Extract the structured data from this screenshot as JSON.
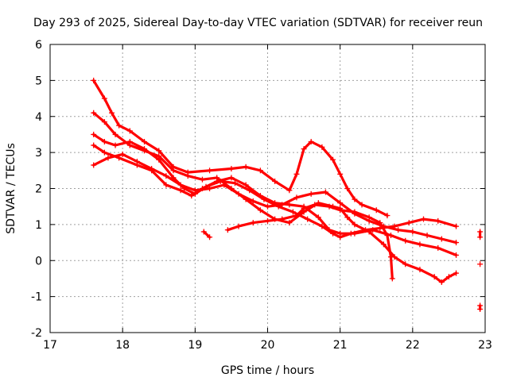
{
  "chart_data": {
    "type": "scatter",
    "title": "Day 293 of 2025, Sidereal Day-to-day VTEC variation (SDTVAR) for receiver reun",
    "xlabel": "GPS time / hours",
    "ylabel": "SDTVAR / TECUs",
    "xlim": [
      17,
      23
    ],
    "ylim": [
      -2,
      6
    ],
    "xticks": [
      "17",
      "18",
      "19",
      "20",
      "21",
      "22",
      "23"
    ],
    "yticks": [
      "-2",
      "-1",
      "0",
      "1",
      "2",
      "3",
      "4",
      "5",
      "6"
    ],
    "grid": true,
    "marker": "plus",
    "color": "#ff0000",
    "series": [
      {
        "name": "track-1",
        "points": [
          [
            17.6,
            5.0
          ],
          [
            17.75,
            4.5
          ],
          [
            17.85,
            4.1
          ],
          [
            17.95,
            3.75
          ],
          [
            18.1,
            3.6
          ],
          [
            18.3,
            3.3
          ],
          [
            18.5,
            3.05
          ],
          [
            18.7,
            2.6
          ],
          [
            18.9,
            2.45
          ],
          [
            19.2,
            2.5
          ],
          [
            19.5,
            2.55
          ],
          [
            19.7,
            2.6
          ],
          [
            19.9,
            2.5
          ],
          [
            20.1,
            2.2
          ],
          [
            20.3,
            1.95
          ],
          [
            20.4,
            2.4
          ],
          [
            20.5,
            3.1
          ],
          [
            20.6,
            3.3
          ],
          [
            20.75,
            3.15
          ],
          [
            20.9,
            2.8
          ],
          [
            21.0,
            2.4
          ],
          [
            21.1,
            2.0
          ],
          [
            21.2,
            1.7
          ],
          [
            21.3,
            1.55
          ],
          [
            21.5,
            1.4
          ],
          [
            21.65,
            1.25
          ]
        ]
      },
      {
        "name": "track-2",
        "points": [
          [
            17.6,
            4.1
          ],
          [
            17.75,
            3.85
          ],
          [
            17.9,
            3.5
          ],
          [
            18.1,
            3.2
          ],
          [
            18.3,
            3.05
          ],
          [
            18.5,
            2.9
          ],
          [
            18.7,
            2.5
          ],
          [
            18.9,
            2.35
          ],
          [
            19.1,
            2.25
          ],
          [
            19.3,
            2.3
          ],
          [
            19.5,
            2.0
          ],
          [
            19.7,
            1.7
          ],
          [
            19.9,
            1.4
          ],
          [
            20.1,
            1.15
          ],
          [
            20.3,
            1.05
          ],
          [
            20.5,
            1.35
          ],
          [
            20.7,
            1.6
          ],
          [
            20.9,
            1.5
          ],
          [
            21.0,
            1.45
          ],
          [
            21.1,
            1.2
          ],
          [
            21.2,
            1.0
          ],
          [
            21.4,
            0.8
          ],
          [
            21.6,
            0.45
          ],
          [
            21.75,
            0.1
          ],
          [
            21.9,
            -0.1
          ],
          [
            22.1,
            -0.25
          ],
          [
            22.3,
            -0.45
          ],
          [
            22.4,
            -0.6
          ],
          [
            22.5,
            -0.45
          ],
          [
            22.6,
            -0.35
          ]
        ]
      },
      {
        "name": "track-3",
        "points": [
          [
            17.6,
            3.5
          ],
          [
            17.75,
            3.3
          ],
          [
            17.9,
            3.2
          ],
          [
            18.1,
            3.3
          ],
          [
            18.3,
            3.1
          ],
          [
            18.5,
            2.8
          ],
          [
            18.7,
            2.3
          ],
          [
            18.85,
            2.0
          ],
          [
            19.0,
            1.85
          ],
          [
            19.15,
            2.05
          ],
          [
            19.35,
            2.2
          ],
          [
            19.55,
            2.15
          ],
          [
            19.75,
            1.95
          ],
          [
            19.95,
            1.7
          ],
          [
            20.15,
            1.5
          ],
          [
            20.35,
            1.35
          ],
          [
            20.55,
            1.15
          ],
          [
            20.75,
            0.95
          ],
          [
            20.9,
            0.75
          ],
          [
            21.0,
            0.65
          ],
          [
            21.15,
            0.75
          ],
          [
            21.35,
            0.85
          ],
          [
            21.55,
            0.9
          ],
          [
            21.75,
            0.95
          ],
          [
            21.95,
            1.05
          ],
          [
            22.15,
            1.15
          ],
          [
            22.35,
            1.1
          ],
          [
            22.6,
            0.95
          ]
        ]
      },
      {
        "name": "track-4",
        "points": [
          [
            17.6,
            3.2
          ],
          [
            17.75,
            3.0
          ],
          [
            17.95,
            2.85
          ],
          [
            18.2,
            2.65
          ],
          [
            18.4,
            2.5
          ],
          [
            18.6,
            2.1
          ],
          [
            18.8,
            1.95
          ],
          [
            18.95,
            1.8
          ],
          [
            19.1,
            2.0
          ],
          [
            19.3,
            2.2
          ],
          [
            19.5,
            2.3
          ],
          [
            19.7,
            2.1
          ],
          [
            19.9,
            1.8
          ],
          [
            20.1,
            1.6
          ],
          [
            20.3,
            1.55
          ],
          [
            20.5,
            1.5
          ],
          [
            20.7,
            1.2
          ],
          [
            20.85,
            0.85
          ],
          [
            21.0,
            0.75
          ],
          [
            21.2,
            0.75
          ],
          [
            21.45,
            0.85
          ],
          [
            21.7,
            0.7
          ],
          [
            21.9,
            0.55
          ],
          [
            22.1,
            0.45
          ],
          [
            22.35,
            0.35
          ],
          [
            22.6,
            0.15
          ]
        ]
      },
      {
        "name": "track-5",
        "points": [
          [
            17.6,
            2.65
          ],
          [
            17.8,
            2.85
          ],
          [
            18.0,
            2.95
          ],
          [
            18.2,
            2.75
          ],
          [
            18.4,
            2.55
          ],
          [
            18.6,
            2.35
          ],
          [
            18.8,
            2.1
          ],
          [
            19.0,
            1.95
          ],
          [
            19.2,
            2.0
          ],
          [
            19.4,
            2.1
          ],
          [
            19.6,
            1.85
          ],
          [
            19.8,
            1.65
          ],
          [
            20.0,
            1.5
          ],
          [
            20.2,
            1.55
          ],
          [
            20.4,
            1.75
          ],
          [
            20.6,
            1.85
          ],
          [
            20.8,
            1.9
          ],
          [
            21.0,
            1.6
          ],
          [
            21.2,
            1.3
          ],
          [
            21.4,
            1.1
          ],
          [
            21.6,
            0.95
          ],
          [
            21.8,
            0.85
          ],
          [
            22.0,
            0.8
          ],
          [
            22.2,
            0.7
          ],
          [
            22.4,
            0.6
          ],
          [
            22.6,
            0.5
          ]
        ]
      },
      {
        "name": "track-6",
        "points": [
          [
            19.45,
            0.85
          ],
          [
            19.6,
            0.95
          ],
          [
            19.8,
            1.05
          ],
          [
            20.0,
            1.1
          ],
          [
            20.2,
            1.15
          ],
          [
            20.4,
            1.25
          ],
          [
            20.5,
            1.45
          ],
          [
            20.65,
            1.55
          ],
          [
            20.85,
            1.5
          ],
          [
            21.0,
            1.4
          ],
          [
            21.2,
            1.35
          ],
          [
            21.4,
            1.2
          ],
          [
            21.55,
            1.05
          ],
          [
            21.65,
            0.7
          ],
          [
            21.7,
            0.1
          ],
          [
            21.72,
            -0.5
          ]
        ]
      },
      {
        "name": "track-7",
        "points": [
          [
            19.12,
            0.8
          ],
          [
            19.2,
            0.65
          ]
        ]
      },
      {
        "name": "track-8",
        "points": [
          [
            22.93,
            0.8
          ],
          [
            22.93,
            0.65
          ]
        ]
      },
      {
        "name": "track-9",
        "points": [
          [
            22.93,
            -0.1
          ]
        ]
      },
      {
        "name": "track-10",
        "points": [
          [
            22.93,
            -1.25
          ],
          [
            22.93,
            -1.35
          ]
        ]
      }
    ]
  }
}
